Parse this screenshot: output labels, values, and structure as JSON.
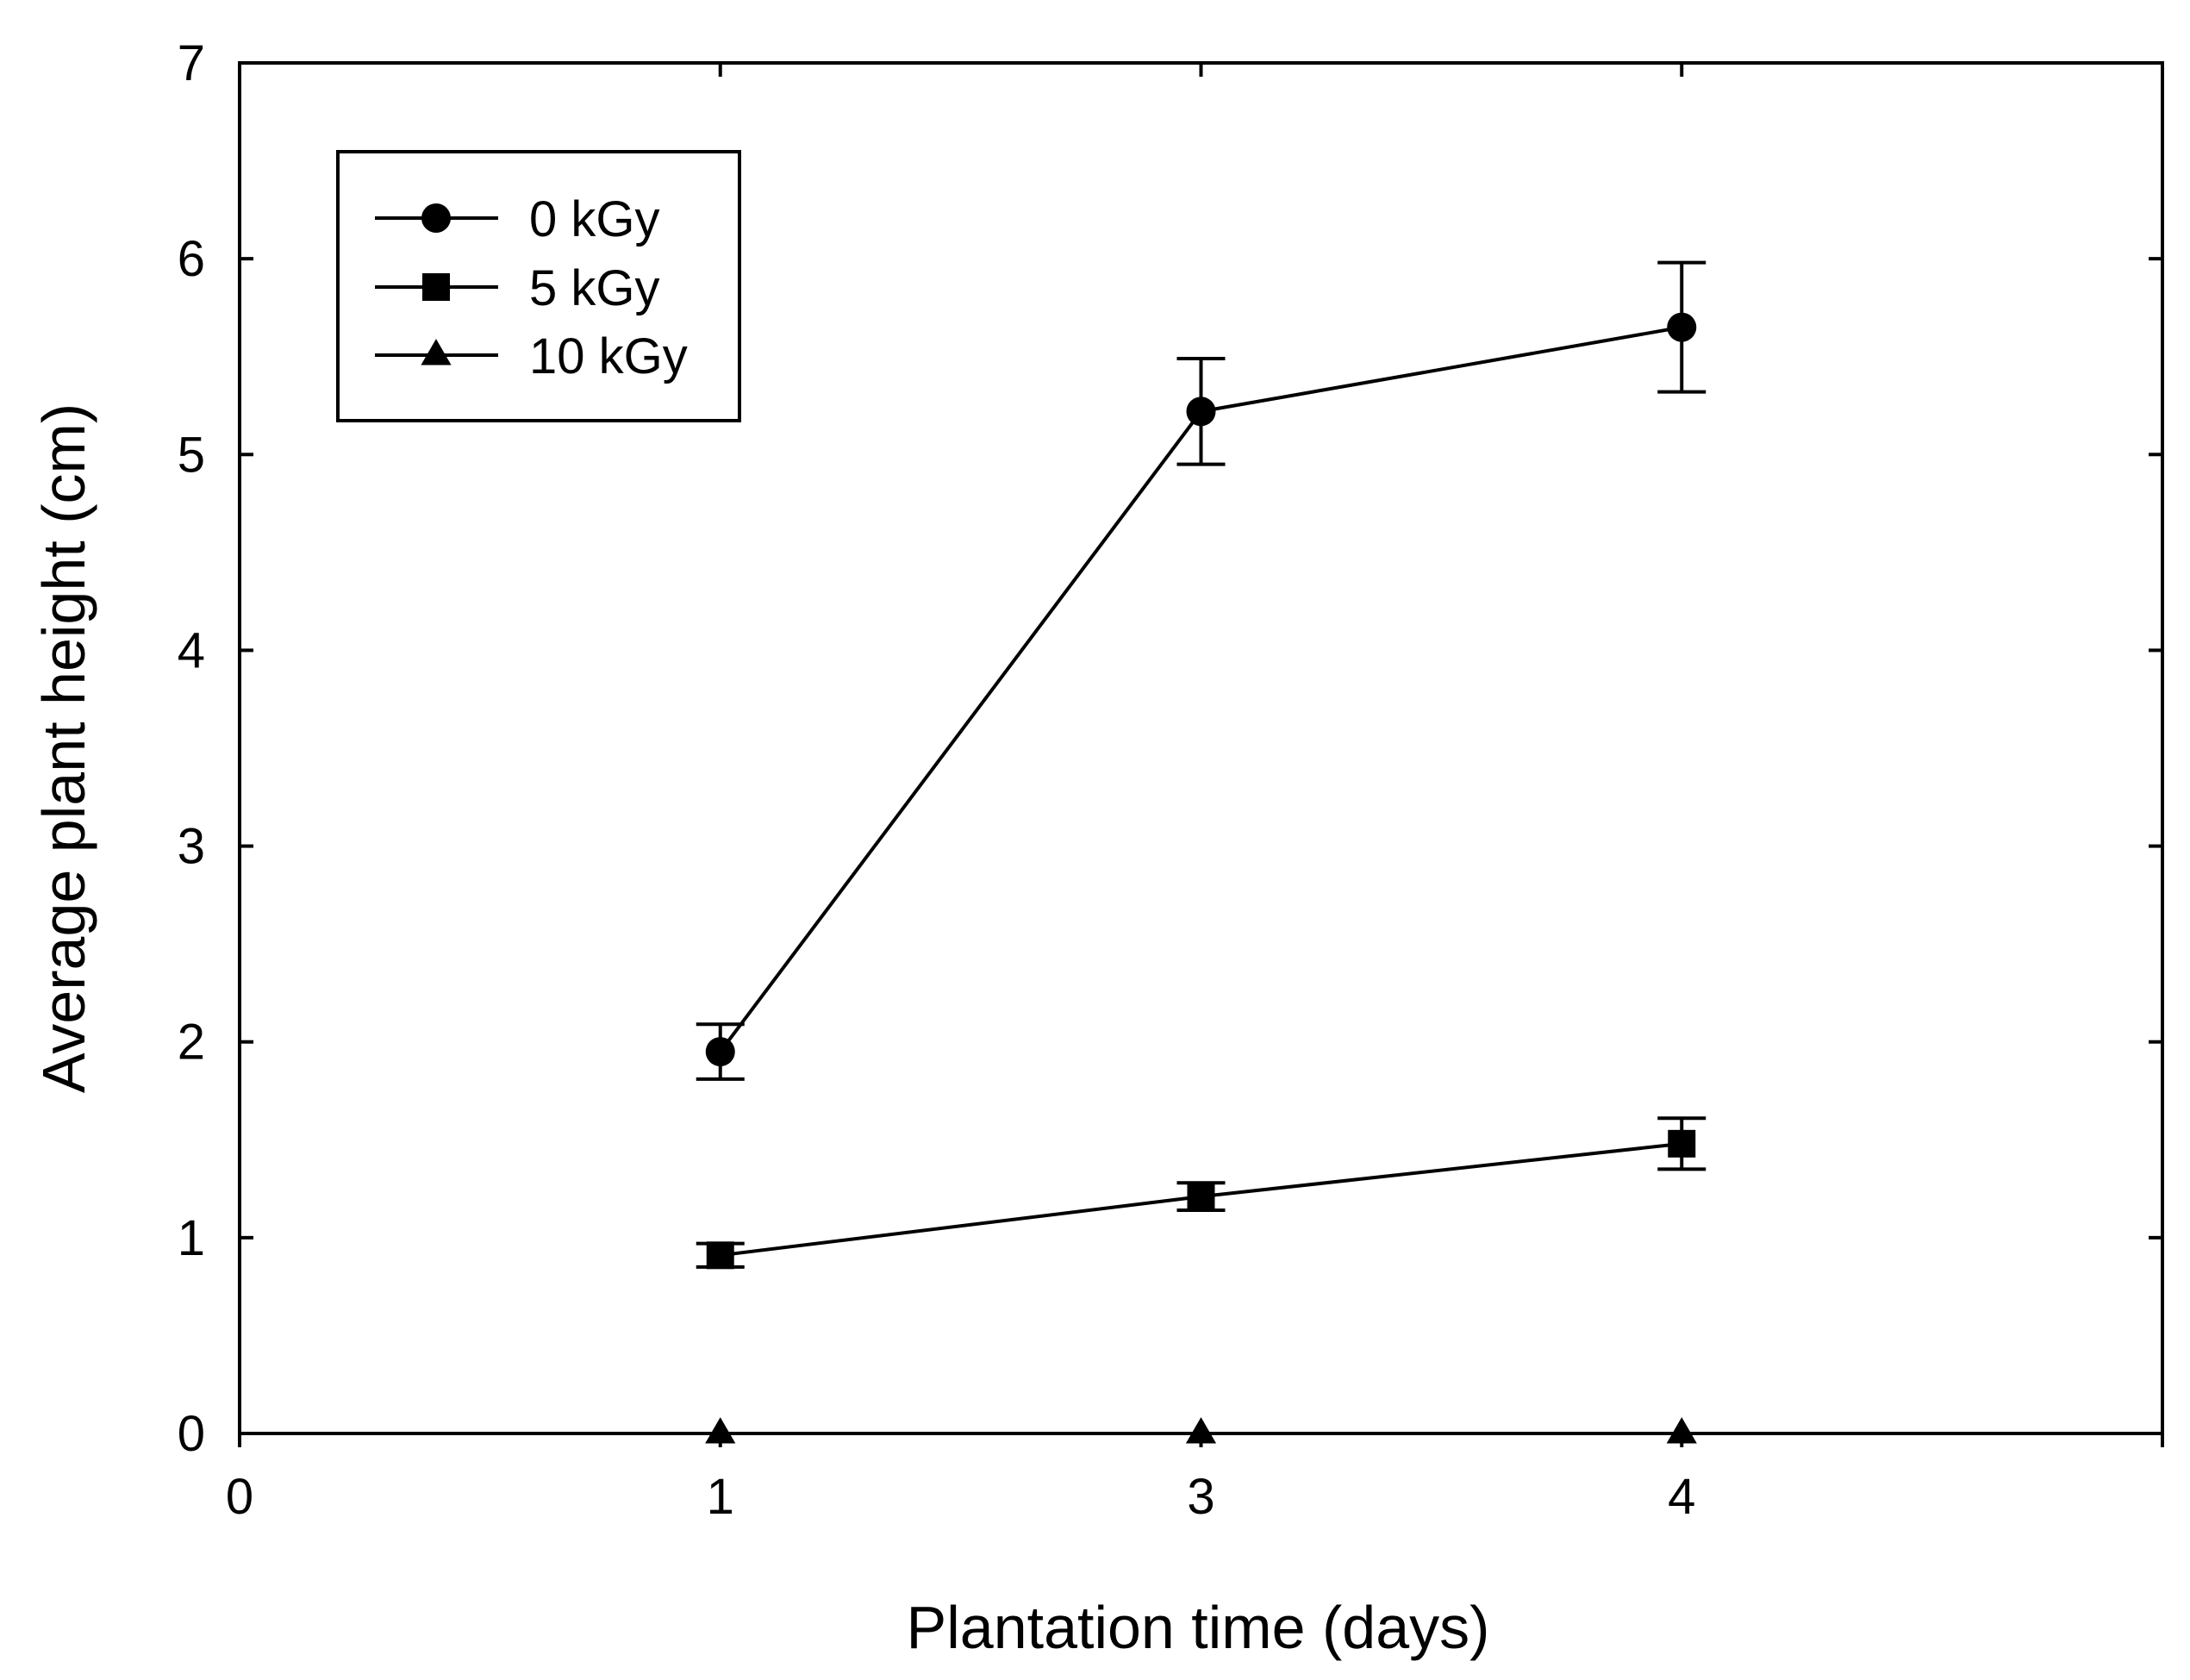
{
  "chart_data": {
    "type": "line",
    "title": "",
    "xlabel": "Plantation time (days)",
    "ylabel": "Average plant height (cm)",
    "xlim": [
      0,
      4
    ],
    "ylim": [
      0,
      7
    ],
    "x_ticks": [
      {
        "value": 0,
        "label": "0"
      },
      {
        "value": 1,
        "label": "1"
      },
      {
        "value": 2,
        "label": "3"
      },
      {
        "value": 3,
        "label": "4"
      }
    ],
    "y_ticks": [
      {
        "value": 0,
        "label": "0"
      },
      {
        "value": 1,
        "label": "1"
      },
      {
        "value": 2,
        "label": "2"
      },
      {
        "value": 3,
        "label": "3"
      },
      {
        "value": 4,
        "label": "4"
      },
      {
        "value": 5,
        "label": "5"
      },
      {
        "value": 6,
        "label": "6"
      },
      {
        "value": 7,
        "label": "7"
      }
    ],
    "grid": false,
    "legend_position": "top-left",
    "series": [
      {
        "name": "0 kGy",
        "marker": "circle",
        "x": [
          1,
          2,
          3
        ],
        "values": [
          1.95,
          5.22,
          5.65
        ],
        "errors": [
          0.14,
          0.27,
          0.33
        ]
      },
      {
        "name": "5 kGy",
        "marker": "square",
        "x": [
          1,
          2,
          3
        ],
        "values": [
          0.91,
          1.21,
          1.48
        ],
        "errors": [
          0.06,
          0.07,
          0.13
        ]
      },
      {
        "name": "10 kGy",
        "marker": "triangle",
        "x": [
          1,
          2,
          3
        ],
        "values": [
          0,
          0,
          0
        ],
        "errors": [
          0,
          0,
          0
        ]
      }
    ]
  }
}
